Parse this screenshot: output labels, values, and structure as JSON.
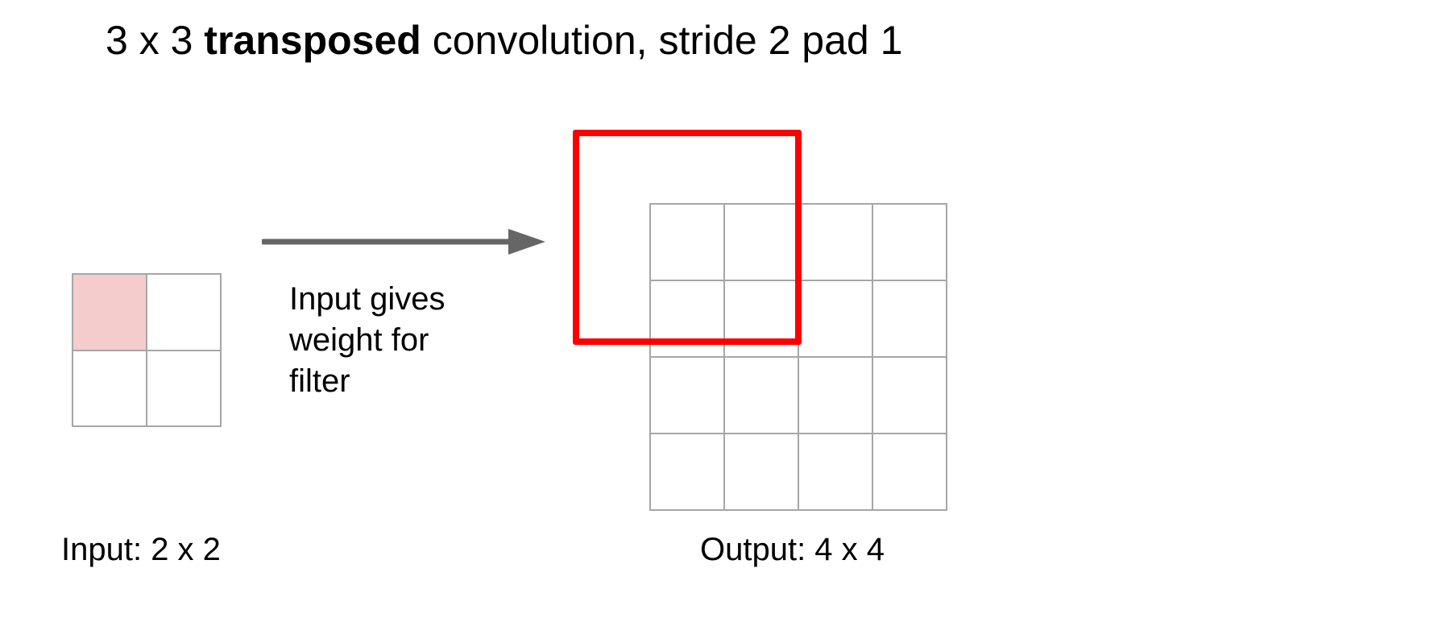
{
  "title": {
    "prefix": "3 x 3 ",
    "emphasis": "transposed",
    "suffix": " convolution, stride 2 pad 1"
  },
  "input": {
    "label": "Input: 2 x 2",
    "rows": 2,
    "cols": 2,
    "highlighted_cell": 0,
    "highlight_color": "#f4cccc"
  },
  "output": {
    "label": "Output: 4 x 4",
    "rows": 4,
    "cols": 4
  },
  "filter": {
    "color": "#ff0000"
  },
  "arrow": {
    "color": "#666666"
  },
  "note": {
    "lines": [
      "Input gives",
      "weight for",
      "filter"
    ]
  }
}
